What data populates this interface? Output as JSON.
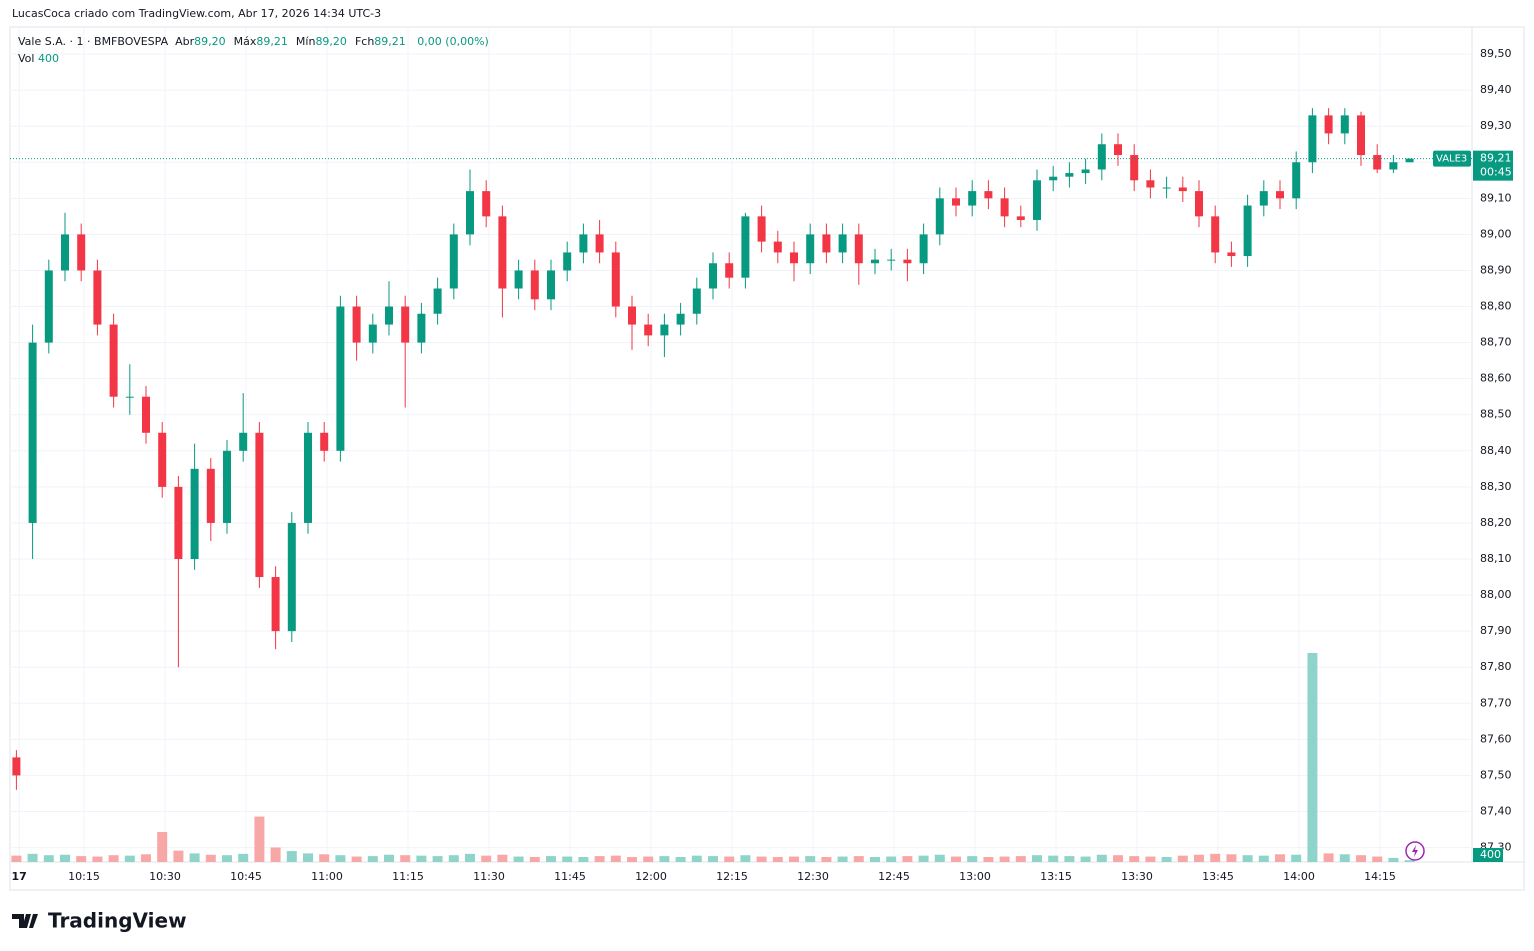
{
  "chart_data": {
    "type": "candlestick",
    "caption": "LucasCoca criado com TradingView.com, Abr 17, 2026 14:34 UTC-3",
    "title": "Vale S.A. · 1 · BMFBOVESPA",
    "legend": [
      {
        "label": "Abr",
        "value": "89,20"
      },
      {
        "label": "Máx",
        "value": "89,21"
      },
      {
        "label": "Mín",
        "value": "89,20"
      },
      {
        "label": "Fch",
        "value": "89,21"
      }
    ],
    "change": "0,00 (0,00%)",
    "volume_legend": {
      "label": "Vol",
      "value": "400"
    },
    "symbol_label": "VALE3",
    "last_price": {
      "value": 89.21,
      "label": "89,21"
    },
    "countdown": "00:45",
    "last_volume": {
      "value": 400,
      "label": "400"
    },
    "watermark": "TradingView",
    "up_color": "#089981",
    "down_color": "#f23645",
    "volume_up_color": "#8fd4ca",
    "volume_down_color": "#f7a8a6",
    "grid": true,
    "ylim": [
      87.26,
      89.575
    ],
    "yticks": [
      {
        "value": 87.3,
        "label": "87,30"
      },
      {
        "value": 87.4,
        "label": "87,40"
      },
      {
        "value": 87.5,
        "label": "87,50"
      },
      {
        "value": 87.6,
        "label": "87,60"
      },
      {
        "value": 87.7,
        "label": "87,70"
      },
      {
        "value": 87.8,
        "label": "87,80"
      },
      {
        "value": 87.9,
        "label": "87,90"
      },
      {
        "value": 88.0,
        "label": "88,00"
      },
      {
        "value": 88.1,
        "label": "88,10"
      },
      {
        "value": 88.2,
        "label": "88,20"
      },
      {
        "value": 88.3,
        "label": "88,30"
      },
      {
        "value": 88.4,
        "label": "88,40"
      },
      {
        "value": 88.5,
        "label": "88,50"
      },
      {
        "value": 88.6,
        "label": "88,60"
      },
      {
        "value": 88.7,
        "label": "88,70"
      },
      {
        "value": 88.8,
        "label": "88,80"
      },
      {
        "value": 88.9,
        "label": "88,90"
      },
      {
        "value": 89.0,
        "label": "89,00"
      },
      {
        "value": 89.1,
        "label": "89,10"
      },
      {
        "value": 89.2,
        "label": "89,20"
      },
      {
        "value": 89.3,
        "label": "89,30"
      },
      {
        "value": 89.4,
        "label": "89,40"
      },
      {
        "value": 89.5,
        "label": "89,50"
      }
    ],
    "xlim": [
      "10:00",
      "14:30"
    ],
    "xticks": [
      {
        "value": "10:03",
        "label": "17"
      },
      "10:15",
      "10:30",
      "10:45",
      "11:00",
      "11:15",
      "11:30",
      "11:45",
      "12:00",
      "12:15",
      "12:30",
      "12:45",
      "13:00",
      "13:15",
      "13:30",
      "13:45",
      "14:00",
      "14:15"
    ],
    "x": [
      "10:01",
      "10:04",
      "10:07",
      "10:10",
      "10:13",
      "10:16",
      "10:19",
      "10:22",
      "10:25",
      "10:28",
      "10:31",
      "10:34",
      "10:37",
      "10:40",
      "10:43",
      "10:46",
      "10:49",
      "10:52",
      "10:55",
      "10:58",
      "11:01",
      "11:04",
      "11:07",
      "11:10",
      "11:13",
      "11:16",
      "11:19",
      "11:22",
      "11:25",
      "11:28",
      "11:31",
      "11:34",
      "11:37",
      "11:40",
      "11:43",
      "11:46",
      "11:49",
      "11:52",
      "11:55",
      "11:58",
      "12:01",
      "12:04",
      "12:07",
      "12:10",
      "12:13",
      "12:16",
      "12:19",
      "12:22",
      "12:25",
      "12:28",
      "12:31",
      "12:34",
      "12:37",
      "12:40",
      "12:43",
      "12:46",
      "12:49",
      "12:52",
      "12:55",
      "12:58",
      "13:01",
      "13:04",
      "13:07",
      "13:10",
      "13:13",
      "13:16",
      "13:19",
      "13:22",
      "13:25",
      "13:28",
      "13:31",
      "13:34",
      "13:37",
      "13:40",
      "13:43",
      "13:46",
      "13:49",
      "13:52",
      "13:55",
      "13:58",
      "14:01",
      "14:04",
      "14:07",
      "14:10",
      "14:13",
      "14:16",
      "14:19"
    ],
    "open": [
      87.55,
      88.2,
      88.7,
      88.9,
      89.0,
      88.9,
      88.75,
      88.55,
      88.55,
      88.45,
      88.3,
      88.1,
      88.35,
      88.2,
      88.4,
      88.45,
      88.05,
      87.9,
      88.2,
      88.45,
      88.4,
      88.8,
      88.7,
      88.75,
      88.8,
      88.7,
      88.78,
      88.85,
      89.0,
      89.12,
      89.05,
      88.85,
      88.9,
      88.82,
      88.9,
      88.95,
      89.0,
      88.95,
      88.8,
      88.75,
      88.72,
      88.75,
      88.78,
      88.85,
      88.92,
      88.88,
      89.05,
      88.98,
      88.95,
      88.92,
      89.0,
      88.95,
      89.0,
      88.92,
      88.93,
      88.93,
      88.92,
      89.0,
      89.1,
      89.08,
      89.12,
      89.1,
      89.05,
      89.04,
      89.15,
      89.16,
      89.17,
      89.18,
      89.25,
      89.22,
      89.15,
      89.13,
      89.13,
      89.12,
      89.05,
      88.95,
      88.94,
      89.08,
      89.12,
      89.1,
      89.2,
      89.33,
      89.28,
      89.33,
      89.22,
      89.18,
      89.2
    ],
    "high": [
      87.57,
      88.75,
      88.93,
      89.06,
      89.03,
      88.93,
      88.78,
      88.64,
      88.58,
      88.48,
      88.33,
      88.42,
      88.38,
      88.43,
      88.56,
      88.48,
      88.08,
      88.23,
      88.48,
      88.48,
      88.83,
      88.83,
      88.78,
      88.87,
      88.83,
      88.81,
      88.88,
      89.03,
      89.18,
      89.15,
      89.08,
      88.93,
      88.93,
      88.93,
      88.98,
      89.03,
      89.04,
      88.98,
      88.83,
      88.78,
      88.78,
      88.81,
      88.88,
      88.95,
      88.95,
      89.06,
      89.08,
      89.01,
      88.98,
      89.03,
      89.03,
      89.03,
      89.03,
      88.96,
      88.96,
      88.96,
      89.03,
      89.13,
      89.13,
      89.15,
      89.15,
      89.13,
      89.08,
      89.18,
      89.19,
      89.2,
      89.21,
      89.28,
      89.28,
      89.25,
      89.18,
      89.16,
      89.16,
      89.15,
      89.08,
      88.98,
      89.11,
      89.15,
      89.15,
      89.23,
      89.35,
      89.35,
      89.35,
      89.34,
      89.25,
      89.22,
      89.21
    ],
    "low": [
      87.46,
      88.1,
      88.67,
      88.87,
      88.87,
      88.72,
      88.52,
      88.5,
      88.42,
      88.27,
      87.8,
      88.07,
      88.15,
      88.17,
      88.37,
      88.02,
      87.85,
      87.87,
      88.17,
      88.37,
      88.37,
      88.65,
      88.67,
      88.72,
      88.52,
      88.67,
      88.75,
      88.82,
      88.97,
      89.02,
      88.77,
      88.82,
      88.79,
      88.79,
      88.87,
      88.92,
      88.92,
      88.77,
      88.68,
      88.69,
      88.66,
      88.72,
      88.75,
      88.82,
      88.85,
      88.85,
      88.95,
      88.92,
      88.87,
      88.89,
      88.92,
      88.92,
      88.86,
      88.89,
      88.9,
      88.87,
      88.89,
      88.97,
      89.05,
      89.05,
      89.07,
      89.02,
      89.02,
      89.01,
      89.12,
      89.13,
      89.14,
      89.15,
      89.19,
      89.12,
      89.1,
      89.1,
      89.09,
      89.02,
      88.92,
      88.91,
      88.91,
      89.05,
      89.07,
      89.07,
      89.17,
      89.25,
      89.25,
      89.19,
      89.17,
      89.17,
      89.2
    ],
    "close": [
      87.5,
      88.7,
      88.9,
      89.0,
      88.9,
      88.75,
      88.55,
      88.55,
      88.45,
      88.3,
      88.1,
      88.35,
      88.2,
      88.4,
      88.45,
      88.05,
      87.9,
      88.2,
      88.45,
      88.4,
      88.8,
      88.7,
      88.75,
      88.8,
      88.7,
      88.78,
      88.85,
      89.0,
      89.12,
      89.05,
      88.85,
      88.9,
      88.82,
      88.9,
      88.95,
      89.0,
      88.95,
      88.8,
      88.75,
      88.72,
      88.75,
      88.78,
      88.85,
      88.92,
      88.88,
      89.05,
      88.98,
      88.95,
      88.92,
      89.0,
      88.95,
      89.0,
      88.92,
      88.93,
      88.93,
      88.92,
      89.0,
      89.1,
      89.08,
      89.12,
      89.1,
      89.05,
      89.04,
      89.15,
      89.16,
      89.17,
      89.18,
      89.25,
      89.22,
      89.15,
      89.13,
      89.13,
      89.12,
      89.05,
      88.95,
      88.94,
      89.08,
      89.12,
      89.1,
      89.2,
      89.33,
      89.28,
      89.33,
      89.22,
      89.18,
      89.2,
      89.21
    ],
    "volume": [
      1400,
      1800,
      1500,
      1600,
      1300,
      1200,
      1500,
      1400,
      1700,
      6600,
      2500,
      1900,
      1600,
      1500,
      1800,
      10000,
      3200,
      2400,
      1900,
      1700,
      1500,
      1200,
      1300,
      1600,
      1500,
      1400,
      1300,
      1500,
      1800,
      1400,
      1600,
      1200,
      1100,
      1300,
      1200,
      1100,
      1300,
      1400,
      1100,
      1200,
      1300,
      1100,
      1400,
      1300,
      1200,
      1500,
      1200,
      1100,
      1200,
      1300,
      1100,
      1200,
      1300,
      1100,
      1200,
      1300,
      1400,
      1600,
      1200,
      1300,
      1100,
      1200,
      1300,
      1500,
      1400,
      1300,
      1200,
      1600,
      1500,
      1300,
      1200,
      1100,
      1400,
      1600,
      1800,
      1700,
      1500,
      1400,
      1700,
      1600,
      46000,
      1900,
      1700,
      1500,
      1200,
      900,
      400
    ]
  }
}
